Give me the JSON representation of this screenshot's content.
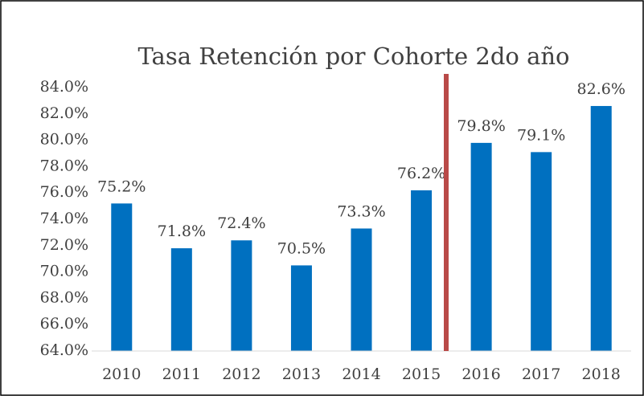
{
  "chart_data": {
    "type": "bar",
    "title": "Tasa Retención por Cohorte 2do año",
    "categories": [
      "2010",
      "2011",
      "2012",
      "2013",
      "2014",
      "2015",
      "2016",
      "2017",
      "2018"
    ],
    "values": [
      75.2,
      71.8,
      72.4,
      70.5,
      73.3,
      76.2,
      79.8,
      79.1,
      82.6
    ],
    "value_labels": [
      "75.2%",
      "71.8%",
      "72.4%",
      "70.5%",
      "73.3%",
      "76.2%",
      "79.8%",
      "79.1%",
      "82.6%"
    ],
    "color": "#0070c0",
    "ylim": [
      64,
      84
    ],
    "yticks": [
      {
        "value": 64,
        "label": "64.0%"
      },
      {
        "value": 66,
        "label": "66.0%"
      },
      {
        "value": 68,
        "label": "68.0%"
      },
      {
        "value": 70,
        "label": "70.0%"
      },
      {
        "value": 72,
        "label": "72.0%"
      },
      {
        "value": 74,
        "label": "74.0%"
      },
      {
        "value": 76,
        "label": "76.0%"
      },
      {
        "value": 78,
        "label": "78.0%"
      },
      {
        "value": 80,
        "label": "80.0%"
      },
      {
        "value": 82,
        "label": "82.0%"
      },
      {
        "value": 84,
        "label": "84.0%"
      }
    ],
    "grid": false
  }
}
